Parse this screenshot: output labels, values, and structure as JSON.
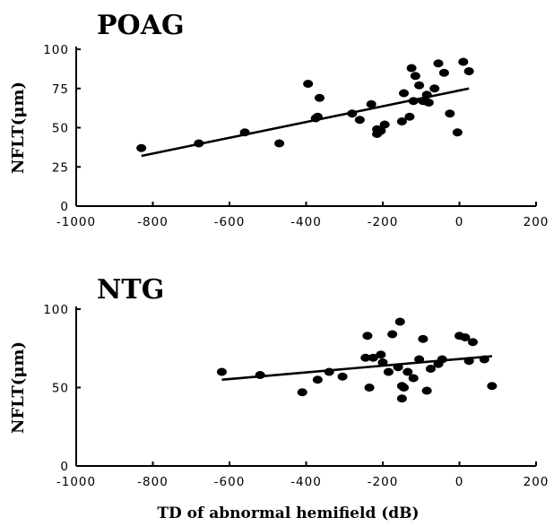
{
  "chart_data": [
    {
      "type": "scatter",
      "title": "POAG",
      "ylabel": "NFLT(μm)",
      "xlabel": "",
      "xlim": [
        -1000,
        200
      ],
      "ylim": [
        0,
        100
      ],
      "xticks": [
        -1000,
        -800,
        -600,
        -400,
        -200,
        0,
        200
      ],
      "yticks": [
        0,
        25,
        50,
        75,
        100
      ],
      "points": [
        [
          -830,
          37
        ],
        [
          -680,
          40
        ],
        [
          -560,
          47
        ],
        [
          -470,
          40
        ],
        [
          -395,
          78
        ],
        [
          -375,
          56
        ],
        [
          -370,
          57
        ],
        [
          -365,
          69
        ],
        [
          -280,
          59
        ],
        [
          -260,
          55
        ],
        [
          -230,
          65
        ],
        [
          -215,
          46
        ],
        [
          -215,
          49
        ],
        [
          -205,
          48
        ],
        [
          -195,
          52
        ],
        [
          -150,
          54
        ],
        [
          -145,
          72
        ],
        [
          -130,
          57
        ],
        [
          -125,
          88
        ],
        [
          -120,
          67
        ],
        [
          -115,
          83
        ],
        [
          -105,
          77
        ],
        [
          -95,
          67
        ],
        [
          -90,
          67
        ],
        [
          -85,
          71
        ],
        [
          -80,
          66
        ],
        [
          -65,
          75
        ],
        [
          -55,
          91
        ],
        [
          -40,
          85
        ],
        [
          -25,
          59
        ],
        [
          -5,
          47
        ],
        [
          10,
          92
        ],
        [
          25,
          86
        ]
      ],
      "trend": [
        [
          -830,
          32
        ],
        [
          25,
          75
        ]
      ]
    },
    {
      "type": "scatter",
      "title": "NTG",
      "ylabel": "NFLT(μm)",
      "xlabel": "TD of abnormal hemifield (dB)",
      "xlim": [
        -1000,
        200
      ],
      "ylim": [
        0,
        100
      ],
      "xticks": [
        -1000,
        -800,
        -600,
        -400,
        -200,
        0,
        200
      ],
      "yticks": [
        0,
        50,
        100
      ],
      "points": [
        [
          -620,
          60
        ],
        [
          -520,
          58
        ],
        [
          -410,
          47
        ],
        [
          -370,
          55
        ],
        [
          -340,
          60
        ],
        [
          -305,
          57
        ],
        [
          -245,
          69
        ],
        [
          -240,
          83
        ],
        [
          -235,
          50
        ],
        [
          -225,
          69
        ],
        [
          -205,
          71
        ],
        [
          -200,
          66
        ],
        [
          -185,
          60
        ],
        [
          -175,
          84
        ],
        [
          -160,
          63
        ],
        [
          -155,
          92
        ],
        [
          -150,
          43
        ],
        [
          -150,
          51
        ],
        [
          -145,
          50
        ],
        [
          -135,
          60
        ],
        [
          -120,
          56
        ],
        [
          -105,
          68
        ],
        [
          -95,
          81
        ],
        [
          -85,
          48
        ],
        [
          -75,
          62
        ],
        [
          -55,
          65
        ],
        [
          -45,
          68
        ],
        [
          0,
          83
        ],
        [
          15,
          82
        ],
        [
          35,
          79
        ],
        [
          25,
          67
        ],
        [
          65,
          68
        ],
        [
          85,
          51
        ]
      ],
      "trend": [
        [
          -620,
          55
        ],
        [
          85,
          70
        ]
      ]
    }
  ]
}
